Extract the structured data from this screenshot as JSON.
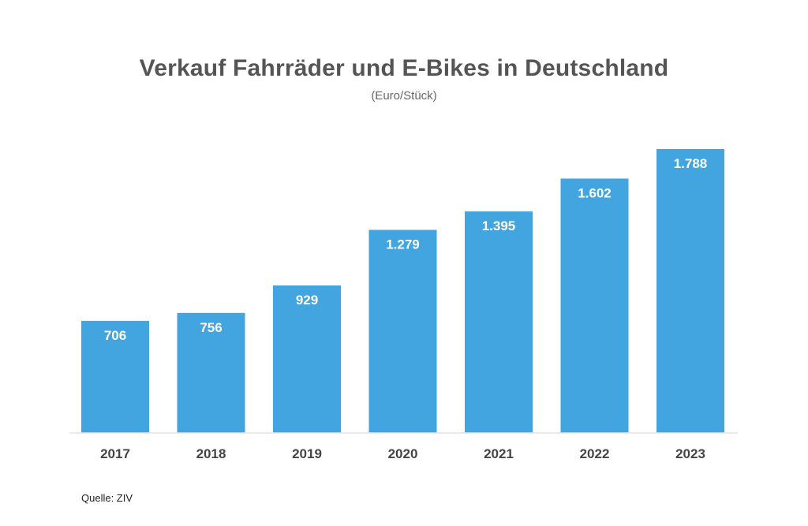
{
  "chart_data": {
    "type": "bar",
    "title": "Verkauf Fahrräder und E-Bikes in Deutschland",
    "subtitle": "(Euro/Stück)",
    "categories": [
      "2017",
      "2018",
      "2019",
      "2020",
      "2021",
      "2022",
      "2023"
    ],
    "values": [
      706,
      756,
      929,
      1279,
      1395,
      1602,
      1788
    ],
    "value_labels": [
      "706",
      "756",
      "929",
      "1.279",
      "1.395",
      "1.602",
      "1.788"
    ],
    "xlabel": "",
    "ylabel": "",
    "ylim": [
      0,
      1788
    ],
    "grid": false,
    "legend": "none",
    "bar_color": "#42a5e0",
    "source": "Quelle: ZIV"
  }
}
